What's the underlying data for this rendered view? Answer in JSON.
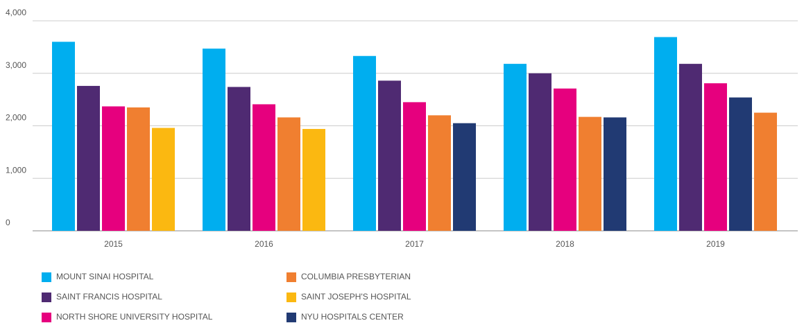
{
  "chart_data": {
    "type": "bar",
    "categories": [
      "2015",
      "2016",
      "2017",
      "2018",
      "2019"
    ],
    "series": [
      {
        "name": "MOUNT SINAI HOSPITAL",
        "color": "#00aeef",
        "values": [
          3600,
          3470,
          3330,
          3180,
          3690
        ]
      },
      {
        "name": "SAINT FRANCIS HOSPITAL",
        "color": "#4f2a72",
        "values": [
          2760,
          2740,
          2860,
          3000,
          3180
        ]
      },
      {
        "name": "NORTH SHORE UNIVERSITY HOSPITAL",
        "color": "#e6007e",
        "values": [
          2370,
          2410,
          2450,
          2710,
          2810
        ]
      },
      {
        "name": "COLUMBIA PRESBYTERIAN",
        "color": "#f07f30",
        "values": [
          2350,
          2160,
          2200,
          2170,
          2250
        ]
      },
      {
        "name": "SAINT JOSEPH'S HOSPITAL",
        "color": "#fbb811",
        "values": [
          1960,
          1940,
          null,
          null,
          null
        ]
      },
      {
        "name": "NYU HOSPITALS CENTER",
        "color": "#213a73",
        "values": [
          null,
          null,
          2050,
          2160,
          2540
        ]
      }
    ],
    "ylim": [
      0,
      4000
    ],
    "yticks": [
      0,
      {
        "value": 1000,
        "label": "1,000"
      },
      {
        "value": 2000,
        "label": "2,000"
      },
      {
        "value": 3000,
        "label": "3,000"
      },
      {
        "value": 4000,
        "label": "4,000"
      }
    ],
    "grid": true
  }
}
